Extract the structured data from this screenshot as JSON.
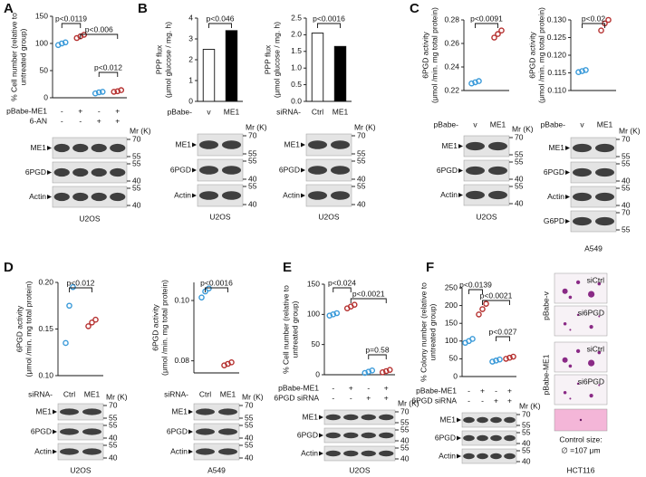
{
  "panels": [
    {
      "letter": "A",
      "plots": [
        {
          "type": "dot",
          "ylabel": [
            "% Cell number (relative to",
            "untreated group)"
          ],
          "ylim": [
            0,
            150
          ],
          "yticks": [
            0,
            50,
            100,
            150
          ],
          "groups": [
            {
              "color": "#3a9ad9",
              "values": [
                97,
                100,
                102
              ]
            },
            {
              "color": "#b5302f",
              "values": [
                110,
                113,
                116
              ]
            },
            {
              "color": "#3a9ad9",
              "values": [
                8,
                10,
                11
              ]
            },
            {
              "color": "#b5302f",
              "values": [
                11,
                12,
                14
              ]
            }
          ],
          "significance": [
            "p<0.0119",
            "p<0.006",
            "p<0.012"
          ],
          "conditions": [
            {
              "label": "pBabe-ME1",
              "marks": [
                "-",
                "+",
                "-",
                "+"
              ]
            },
            {
              "label": "6-AN",
              "marks": [
                "-",
                "-",
                "+",
                "+"
              ]
            }
          ],
          "mr_label": "Mr (K)",
          "blots": [
            {
              "label": "ME1",
              "markers": [
                70,
                55
              ]
            },
            {
              "label": "6PGD",
              "markers": [
                55,
                40
              ]
            },
            {
              "label": "Actin",
              "markers": [
                55,
                40
              ]
            }
          ],
          "cell_line": "U2OS"
        }
      ]
    },
    {
      "letter": "B",
      "plots": [
        {
          "type": "bar",
          "ylabel": [
            "PPP flux",
            "(μmol glucose / mg. h)"
          ],
          "ylim": [
            0,
            4
          ],
          "yticks": [
            0,
            1,
            2,
            3,
            4
          ],
          "groups": [
            {
              "color": "#ffffff",
              "values": [
                2.5
              ]
            },
            {
              "color": "#000000",
              "values": [
                3.4
              ]
            }
          ],
          "significance": [
            "p<0.046"
          ],
          "conditions": [
            {
              "label": "pBabe-",
              "marks": [
                "v",
                "ME1"
              ]
            }
          ],
          "mr_label": "Mr (K)",
          "blots": [
            {
              "label": "ME1",
              "markers": [
                70,
                55
              ]
            },
            {
              "label": "6PGD",
              "markers": [
                55,
                40
              ]
            },
            {
              "label": "Actin",
              "markers": [
                55,
                40
              ]
            }
          ],
          "cell_line": "U2OS"
        },
        {
          "type": "bar",
          "ylabel": [
            "PPP flux",
            "(μmol glucose / mg. h)"
          ],
          "ylim": [
            0,
            2.5
          ],
          "yticks": [
            {
              "value": 0,
              "label": "0.0"
            },
            0.5,
            {
              "value": 1,
              "label": "1.0"
            },
            1.5,
            {
              "value": 2,
              "label": "2.0"
            },
            2.5
          ],
          "groups": [
            {
              "color": "#ffffff",
              "values": [
                2.05
              ]
            },
            {
              "color": "#000000",
              "values": [
                1.65
              ]
            }
          ],
          "significance": [
            "p<0.0016"
          ],
          "conditions": [
            {
              "label": "siRNA-",
              "marks": [
                "Ctrl",
                "ME1"
              ]
            }
          ],
          "mr_label": "Mr (K)",
          "blots": [
            {
              "label": "ME1",
              "markers": [
                70,
                55
              ]
            },
            {
              "label": "6PGD",
              "markers": [
                55,
                40
              ]
            },
            {
              "label": "Actin",
              "markers": [
                55,
                40
              ]
            }
          ],
          "cell_line": "U2OS"
        }
      ]
    },
    {
      "letter": "C",
      "plots": [
        {
          "type": "dot",
          "ylabel": [
            "6PGD activity",
            "(μmol /min. mg total protein)"
          ],
          "ylim": [
            0.22,
            0.28
          ],
          "yticks": [
            0.22,
            0.24,
            0.26,
            0.28
          ],
          "groups": [
            {
              "color": "#3a9ad9",
              "values": [
                0.226,
                0.227,
                0.228
              ]
            },
            {
              "color": "#b5302f",
              "values": [
                0.265,
                0.268,
                0.271
              ]
            }
          ],
          "significance": [
            "p<0.0091"
          ],
          "conditions": [
            {
              "label": "pBabe-",
              "marks": [
                "v",
                "ME1"
              ]
            }
          ],
          "mr_label": "Mr (K)",
          "blots": [
            {
              "label": "ME1",
              "markers": [
                70,
                55
              ]
            },
            {
              "label": "6PGD",
              "markers": [
                55,
                40
              ]
            },
            {
              "label": "Actin",
              "markers": [
                55,
                40
              ]
            }
          ],
          "cell_line": "U2OS"
        },
        {
          "type": "dot",
          "ylabel": [
            "6PGD activity",
            "(μmol /min. mg total protein)"
          ],
          "ylim": [
            0.11,
            0.13
          ],
          "yticks": [
            {
              "value": 0.11,
              "label": "0.110"
            },
            0.115,
            {
              "value": 0.12,
              "label": "0.120"
            },
            0.125,
            {
              "value": 0.13,
              "label": "0.130"
            }
          ],
          "groups": [
            {
              "color": "#3a9ad9",
              "values": [
                0.1152,
                0.1155,
                0.1158
              ]
            },
            {
              "color": "#b5302f",
              "values": [
                0.127,
                0.129,
                0.13
              ]
            }
          ],
          "significance": [
            "p<0.02"
          ],
          "conditions": [
            {
              "label": "pBabe-",
              "marks": [
                "v",
                "ME1"
              ]
            }
          ],
          "mr_label": "Mr (K)",
          "blots": [
            {
              "label": "ME1",
              "markers": [
                70,
                55
              ]
            },
            {
              "label": "6PGD",
              "markers": [
                55,
                40
              ]
            },
            {
              "label": "Actin",
              "markers": [
                55,
                40
              ]
            },
            {
              "label": "G6PD",
              "markers": [
                70,
                55
              ]
            }
          ],
          "cell_line": "A549"
        }
      ]
    },
    {
      "letter": "D",
      "plots": [
        {
          "type": "dot",
          "ylabel": [
            "6PGD activity",
            "(μmol /min. mg total protein)"
          ],
          "ylim": [
            0.1,
            0.2
          ],
          "yticks": [
            {
              "value": 0.1,
              "label": "0.10"
            },
            0.15,
            {
              "value": 0.2,
              "label": "0.20"
            }
          ],
          "groups": [
            {
              "color": "#3a9ad9",
              "values": [
                0.135,
                0.175,
                0.195
              ]
            },
            {
              "color": "#b5302f",
              "values": [
                0.153,
                0.157,
                0.16
              ]
            }
          ],
          "significance": [
            "p<0.012"
          ],
          "conditions": [
            {
              "label": "siRNA-",
              "marks": [
                "Ctrl",
                "ME1"
              ]
            }
          ],
          "mr_label": "Mr (K)",
          "blots": [
            {
              "label": "ME1",
              "markers": [
                70,
                55
              ]
            },
            {
              "label": "6PGD",
              "markers": [
                55,
                40
              ]
            },
            {
              "label": "Actin",
              "markers": [
                55,
                40
              ]
            }
          ],
          "cell_line": "U2OS"
        },
        {
          "type": "dot",
          "ylabel": [
            "6PGD activity",
            "(μmol /min. mg total protein)"
          ],
          "ylim": [
            0.076,
            0.106
          ],
          "yticks": [
            0.08,
            {
              "value": 0.1,
              "label": "0.10"
            }
          ],
          "groups": [
            {
              "color": "#3a9ad9",
              "values": [
                0.101,
                0.103,
                0.104
              ]
            },
            {
              "color": "#b5302f",
              "values": [
                0.0785,
                0.079,
                0.0795
              ]
            }
          ],
          "significance": [
            "p<0.0016"
          ],
          "conditions": [
            {
              "label": "siRNA-",
              "marks": [
                "Ctrl",
                "ME1"
              ]
            }
          ],
          "mr_label": "Mr (K)",
          "blots": [
            {
              "label": "ME1",
              "markers": [
                70,
                55
              ]
            },
            {
              "label": "6PGD",
              "markers": [
                55,
                40
              ]
            },
            {
              "label": "Actin",
              "markers": [
                55,
                40
              ]
            }
          ],
          "cell_line": "A549"
        }
      ]
    },
    {
      "letter": "E",
      "plots": [
        {
          "type": "dot",
          "ylabel": [
            "% Cell number (relative to",
            "untreated group)"
          ],
          "ylim": [
            0,
            150
          ],
          "yticks": [
            0,
            50,
            100,
            150
          ],
          "groups": [
            {
              "color": "#3a9ad9",
              "values": [
                98,
                100,
                102
              ]
            },
            {
              "color": "#b5302f",
              "values": [
                110,
                113,
                116
              ]
            },
            {
              "color": "#3a9ad9",
              "values": [
                3,
                5,
                7
              ]
            },
            {
              "color": "#b5302f",
              "values": [
                4,
                6,
                8
              ]
            }
          ],
          "significance": [
            "p<0.024",
            "p<0.0021",
            "p=0.58"
          ],
          "conditions": [
            {
              "label": "pBabe-ME1",
              "marks": [
                "-",
                "+",
                "-",
                "+"
              ]
            },
            {
              "label": "6PGD siRNA",
              "marks": [
                "-",
                "-",
                "+",
                "+"
              ]
            }
          ],
          "mr_label": "Mr (K)",
          "blots": [
            {
              "label": "ME1",
              "markers": [
                70,
                55
              ]
            },
            {
              "label": "6PGD",
              "markers": [
                55,
                40
              ]
            },
            {
              "label": "Actin",
              "markers": [
                55,
                40
              ]
            }
          ],
          "cell_line": "U2OS"
        }
      ]
    },
    {
      "letter": "F",
      "plots": [
        {
          "type": "dot",
          "ylabel": [
            "% Colony number (relative to",
            "untreated group)"
          ],
          "ylim": [
            0,
            250
          ],
          "yticks": [
            0,
            50,
            100,
            150,
            200,
            250
          ],
          "groups": [
            {
              "color": "#3a9ad9",
              "values": [
                95,
                100,
                106
              ]
            },
            {
              "color": "#b5302f",
              "values": [
                175,
                190,
                205
              ]
            },
            {
              "color": "#3a9ad9",
              "values": [
                42,
                45,
                48
              ]
            },
            {
              "color": "#b5302f",
              "values": [
                50,
                53,
                56
              ]
            }
          ],
          "significance": [
            "p<0.0139",
            "p<0.0021",
            "p<0.027"
          ],
          "conditions": [
            {
              "label": "pBabe-ME1",
              "marks": [
                "-",
                "+",
                "-",
                "+"
              ]
            },
            {
              "label": "6PGD siRNA",
              "marks": [
                "-",
                "-",
                "+",
                "+"
              ]
            }
          ],
          "mr_label": "Mr (K)",
          "blots": [
            {
              "label": "ME1",
              "markers": [
                70,
                55
              ]
            },
            {
              "label": "6PGD",
              "markers": [
                55,
                40
              ]
            },
            {
              "label": "Actin",
              "markers": [
                55,
                40
              ]
            }
          ]
        }
      ],
      "colony": {
        "row_labels": [
          "pBabe-v",
          "pBabe-ME1"
        ],
        "image_labels": [
          "siCtrl",
          "si6PGD",
          "siCtrl",
          "si6PGD"
        ],
        "control_label": "Control size:",
        "size_label": "∅ =107 μm",
        "cell_line": "HCT116"
      }
    }
  ]
}
